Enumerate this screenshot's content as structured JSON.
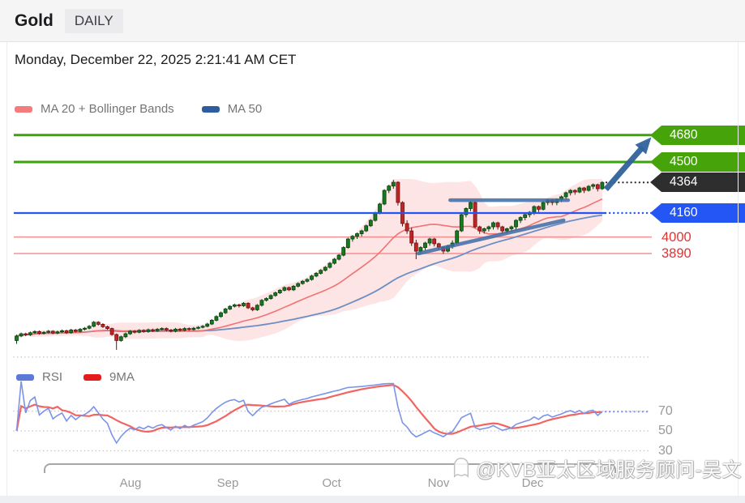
{
  "header": {
    "symbol": "Gold",
    "timeframe": "DAILY"
  },
  "datetime": "Monday, December 22, 2025 2:21:41 AM CET",
  "legend_main": [
    {
      "label": "MA 20 + Bollinger Bands",
      "color": "#f47c7c"
    },
    {
      "label": "MA 50",
      "color": "#2e5d9f"
    }
  ],
  "legend_rsi": [
    {
      "label": "RSI",
      "color": "#5b79d6"
    },
    {
      "label": "9MA",
      "color": "#e51c1c"
    }
  ],
  "watermark": {
    "text": "@KVB亚太区域服务顾问-吴文"
  },
  "chart_data": {
    "type": "candlestick",
    "title": "Gold DAILY",
    "x_axis": {
      "ticks": [
        {
          "label": "Aug",
          "index": 25
        },
        {
          "label": "Sep",
          "index": 46.6
        },
        {
          "label": "Oct",
          "index": 69.3
        },
        {
          "label": "Nov",
          "index": 92.9
        },
        {
          "label": "Dec",
          "index": 113.6
        }
      ]
    },
    "y_axis": {
      "visible_price_range": [
        3180,
        4760
      ],
      "grid_price": 3200,
      "grid_color": "#d6c6c6"
    },
    "indicators": {
      "ma20": {
        "period": 20,
        "color": "#f37272"
      },
      "bollinger": {
        "period": 20,
        "stddev": 2,
        "fill": "rgba(247,156,156,0.26)"
      },
      "ma50": {
        "period": 50,
        "color": "#6b8fc3"
      }
    },
    "candle_colors": {
      "up_fill": "#157b1f",
      "up_stroke": "#0b3d10",
      "down_fill": "#c22525",
      "down_stroke": "#6b1010"
    },
    "levels": [
      {
        "price": 4680,
        "label": "4680",
        "kind": "tag",
        "line_style": "solid",
        "line_color": "#3ba40a",
        "tag_bg": "#46a40a"
      },
      {
        "price": 4500,
        "label": "4500",
        "kind": "tag",
        "line_style": "solid",
        "line_color": "#3ba40a",
        "tag_bg": "#46a40a"
      },
      {
        "price": 4364,
        "label": "4364",
        "kind": "tag",
        "line_style": "dotted",
        "line_color": "#2b2b2b",
        "tag_bg": "#2e2e2e"
      },
      {
        "price": 4160,
        "label": "4160",
        "kind": "tag",
        "line_style": "solid-then-dotted",
        "line_color": "#2356f5",
        "tag_bg": "#2356f5"
      },
      {
        "price": 4000,
        "label": "4000",
        "kind": "text",
        "line_style": "thin",
        "line_color": "#f19090",
        "text_color": "#e23333"
      },
      {
        "price": 3890,
        "label": "3890",
        "kind": "text",
        "line_style": "thin",
        "line_color": "#f19090",
        "text_color": "#e23333"
      }
    ],
    "annotations": {
      "resistance_trendline": {
        "from": {
          "index": 95.5,
          "price": 4246
        },
        "to": {
          "index": 121.5,
          "price": 4246
        },
        "color": "#3d6da6"
      },
      "ascending_trendline": {
        "from": {
          "index": 88.5,
          "price": 3890
        },
        "to": {
          "index": 120.5,
          "price": 4112
        },
        "color": "#3d6da6"
      },
      "projection_arrow": {
        "from": {
          "index": 129.8,
          "price": 4318
        },
        "to": {
          "index": 139.8,
          "price": 4665
        },
        "color": "#31639c"
      }
    },
    "rsi_pane": {
      "period": 14,
      "signal_period": 9,
      "grid_levels": [
        70,
        50,
        30
      ],
      "rsi_color": "#7b93e8",
      "signal_color": "#ef5350",
      "grid_color": "#c4c4c4"
    },
    "candles": [
      [
        3310,
        3349,
        3288,
        3340
      ],
      [
        3340,
        3363,
        3332,
        3355
      ],
      [
        3355,
        3362,
        3339,
        3348
      ],
      [
        3348,
        3370,
        3340,
        3362
      ],
      [
        3362,
        3378,
        3354,
        3370
      ],
      [
        3370,
        3377,
        3349,
        3358
      ],
      [
        3358,
        3373,
        3350,
        3365
      ],
      [
        3365,
        3380,
        3357,
        3372
      ],
      [
        3372,
        3379,
        3352,
        3360
      ],
      [
        3360,
        3376,
        3352,
        3368
      ],
      [
        3368,
        3383,
        3360,
        3375
      ],
      [
        3375,
        3382,
        3354,
        3362
      ],
      [
        3362,
        3388,
        3355,
        3380
      ],
      [
        3380,
        3387,
        3363,
        3371
      ],
      [
        3371,
        3393,
        3364,
        3385
      ],
      [
        3385,
        3400,
        3377,
        3392
      ],
      [
        3392,
        3413,
        3385,
        3405
      ],
      [
        3405,
        3440,
        3398,
        3432
      ],
      [
        3432,
        3439,
        3410,
        3418
      ],
      [
        3418,
        3425,
        3394,
        3402
      ],
      [
        3402,
        3409,
        3382,
        3390
      ],
      [
        3390,
        3396,
        3342,
        3350
      ],
      [
        3350,
        3357,
        3248,
        3310
      ],
      [
        3310,
        3343,
        3302,
        3335
      ],
      [
        3335,
        3363,
        3327,
        3355
      ],
      [
        3355,
        3380,
        3347,
        3372
      ],
      [
        3372,
        3379,
        3357,
        3365
      ],
      [
        3365,
        3386,
        3358,
        3378
      ],
      [
        3378,
        3385,
        3362,
        3370
      ],
      [
        3370,
        3390,
        3362,
        3382
      ],
      [
        3382,
        3389,
        3367,
        3375
      ],
      [
        3375,
        3393,
        3368,
        3385
      ],
      [
        3385,
        3398,
        3377,
        3390
      ],
      [
        3390,
        3397,
        3372,
        3380
      ],
      [
        3380,
        3387,
        3364,
        3372
      ],
      [
        3372,
        3394,
        3365,
        3386
      ],
      [
        3386,
        3393,
        3370,
        3378
      ],
      [
        3378,
        3398,
        3371,
        3390
      ],
      [
        3390,
        3397,
        3375,
        3383
      ],
      [
        3383,
        3400,
        3376,
        3392
      ],
      [
        3392,
        3406,
        3385,
        3398
      ],
      [
        3398,
        3413,
        3391,
        3405
      ],
      [
        3405,
        3428,
        3398,
        3420
      ],
      [
        3420,
        3453,
        3413,
        3445
      ],
      [
        3445,
        3478,
        3438,
        3470
      ],
      [
        3470,
        3503,
        3462,
        3495
      ],
      [
        3495,
        3528,
        3487,
        3520
      ],
      [
        3520,
        3546,
        3512,
        3538
      ],
      [
        3538,
        3556,
        3530,
        3548
      ],
      [
        3548,
        3555,
        3530,
        3542
      ],
      [
        3542,
        3566,
        3534,
        3558
      ],
      [
        3558,
        3565,
        3520,
        3528
      ],
      [
        3528,
        3535,
        3505,
        3515
      ],
      [
        3515,
        3553,
        3507,
        3545
      ],
      [
        3545,
        3586,
        3537,
        3578
      ],
      [
        3578,
        3598,
        3570,
        3590
      ],
      [
        3590,
        3618,
        3582,
        3610
      ],
      [
        3610,
        3636,
        3602,
        3628
      ],
      [
        3628,
        3653,
        3620,
        3645
      ],
      [
        3645,
        3671,
        3637,
        3663
      ],
      [
        3663,
        3670,
        3640,
        3648
      ],
      [
        3648,
        3680,
        3640,
        3672
      ],
      [
        3672,
        3698,
        3664,
        3690
      ],
      [
        3690,
        3713,
        3682,
        3705
      ],
      [
        3705,
        3725,
        3697,
        3717
      ],
      [
        3717,
        3748,
        3709,
        3740
      ],
      [
        3740,
        3766,
        3732,
        3758
      ],
      [
        3758,
        3786,
        3750,
        3778
      ],
      [
        3778,
        3806,
        3770,
        3798
      ],
      [
        3798,
        3833,
        3790,
        3825
      ],
      [
        3825,
        3860,
        3817,
        3852
      ],
      [
        3852,
        3887,
        3844,
        3879
      ],
      [
        3879,
        3938,
        3871,
        3930
      ],
      [
        3930,
        3995,
        3922,
        3987
      ],
      [
        3987,
        4013,
        3969,
        4005
      ],
      [
        4005,
        4030,
        3987,
        4022
      ],
      [
        4022,
        4049,
        4004,
        4041
      ],
      [
        4041,
        4083,
        4033,
        4075
      ],
      [
        4075,
        4119,
        4067,
        4111
      ],
      [
        4111,
        4168,
        4103,
        4160
      ],
      [
        4160,
        4228,
        4152,
        4220
      ],
      [
        4220,
        4319,
        4212,
        4311
      ],
      [
        4311,
        4348,
        4293,
        4340
      ],
      [
        4340,
        4381,
        4322,
        4365
      ],
      [
        4365,
        4372,
        4210,
        4230
      ],
      [
        4230,
        4238,
        4070,
        4090
      ],
      [
        4090,
        4112,
        4021,
        4041
      ],
      [
        4041,
        4063,
        3940,
        3960
      ],
      [
        3960,
        3982,
        3852,
        3906
      ],
      [
        3906,
        3938,
        3888,
        3930
      ],
      [
        3930,
        3968,
        3912,
        3960
      ],
      [
        3960,
        3995,
        3942,
        3987
      ],
      [
        3987,
        3994,
        3937,
        3955
      ],
      [
        3955,
        3962,
        3915,
        3933
      ],
      [
        3933,
        3940,
        3888,
        3906
      ],
      [
        3906,
        3948,
        3898,
        3940
      ],
      [
        3940,
        3978,
        3922,
        3960
      ],
      [
        3960,
        4049,
        3952,
        4041
      ],
      [
        4041,
        4157,
        4033,
        4149
      ],
      [
        4149,
        4198,
        4131,
        4190
      ],
      [
        4190,
        4238,
        4172,
        4230
      ],
      [
        4230,
        4237,
        4060,
        4068
      ],
      [
        4068,
        4075,
        4021,
        4041
      ],
      [
        4041,
        4063,
        4023,
        4055
      ],
      [
        4055,
        4076,
        4037,
        4068
      ],
      [
        4068,
        4103,
        4050,
        4095
      ],
      [
        4095,
        4102,
        4050,
        4068
      ],
      [
        4068,
        4075,
        4023,
        4041
      ],
      [
        4041,
        4063,
        4023,
        4055
      ],
      [
        4055,
        4076,
        4037,
        4068
      ],
      [
        4068,
        4119,
        4050,
        4111
      ],
      [
        4111,
        4138,
        4093,
        4130
      ],
      [
        4130,
        4157,
        4112,
        4149
      ],
      [
        4149,
        4173,
        4131,
        4165
      ],
      [
        4165,
        4211,
        4147,
        4203
      ],
      [
        4203,
        4210,
        4167,
        4185
      ],
      [
        4185,
        4238,
        4177,
        4230
      ],
      [
        4230,
        4254,
        4212,
        4246
      ],
      [
        4246,
        4253,
        4212,
        4230
      ],
      [
        4230,
        4258,
        4212,
        4250
      ],
      [
        4250,
        4276,
        4232,
        4268
      ],
      [
        4268,
        4303,
        4250,
        4295
      ],
      [
        4295,
        4319,
        4277,
        4311
      ],
      [
        4311,
        4318,
        4282,
        4300
      ],
      [
        4300,
        4335,
        4292,
        4327
      ],
      [
        4327,
        4334,
        4293,
        4311
      ],
      [
        4311,
        4346,
        4303,
        4338
      ],
      [
        4338,
        4357,
        4320,
        4349
      ],
      [
        4349,
        4356,
        4304,
        4322
      ],
      [
        4322,
        4372,
        4314,
        4364
      ]
    ]
  }
}
